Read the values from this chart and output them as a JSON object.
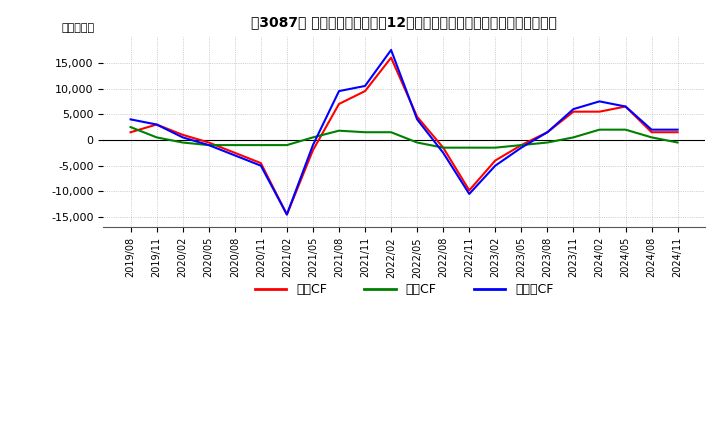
{
  "title": "　3087、 キャッシュフローの12か月移動合計の対前年同期増減額の推移",
  "title_raw": "【3087】 キャッシュフローの12か月移動合計の対前年同期増減額の推移",
  "ylabel": "（百万円）",
  "ylim": [
    -17000,
    20000
  ],
  "yticks": [
    -15000,
    -10000,
    -5000,
    0,
    5000,
    10000,
    15000
  ],
  "legend_labels": [
    "営業CF",
    "投資CF",
    "フリーCF"
  ],
  "legend_colors": [
    "#ff0000",
    "#008000",
    "#0000ff"
  ],
  "x_labels": [
    "2019/08",
    "2019/11",
    "2020/02",
    "2020/05",
    "2020/08",
    "2020/11",
    "2021/02",
    "2021/05",
    "2021/08",
    "2021/11",
    "2022/02",
    "2022/05",
    "2022/08",
    "2022/11",
    "2023/02",
    "2023/05",
    "2023/08",
    "2023/11",
    "2024/02",
    "2024/05",
    "2024/08",
    "2024/11"
  ],
  "operating_cf": [
    1500,
    3000,
    1000,
    -500,
    -2500,
    -4500,
    -14500,
    -2000,
    7000,
    9500,
    16000,
    4500,
    -1500,
    -9800,
    -4000,
    -1000,
    1500,
    5500,
    5500,
    6500,
    1500,
    1500
  ],
  "investing_cf": [
    2500,
    500,
    -500,
    -1000,
    -1000,
    -1000,
    -1000,
    500,
    1800,
    1500,
    1500,
    -500,
    -1500,
    -1500,
    -1500,
    -1000,
    -500,
    500,
    2000,
    2000,
    500,
    -500
  ],
  "free_cf": [
    4000,
    3000,
    500,
    -1000,
    -3000,
    -5000,
    -14500,
    -1000,
    9500,
    10500,
    17500,
    4000,
    -2500,
    -10500,
    -5000,
    -1500,
    1500,
    6000,
    7500,
    6500,
    2000,
    2000
  ],
  "background_color": "#ffffff",
  "plot_bg_color": "#ffffff",
  "grid_color": "#aaaaaa",
  "line_width": 1.5
}
